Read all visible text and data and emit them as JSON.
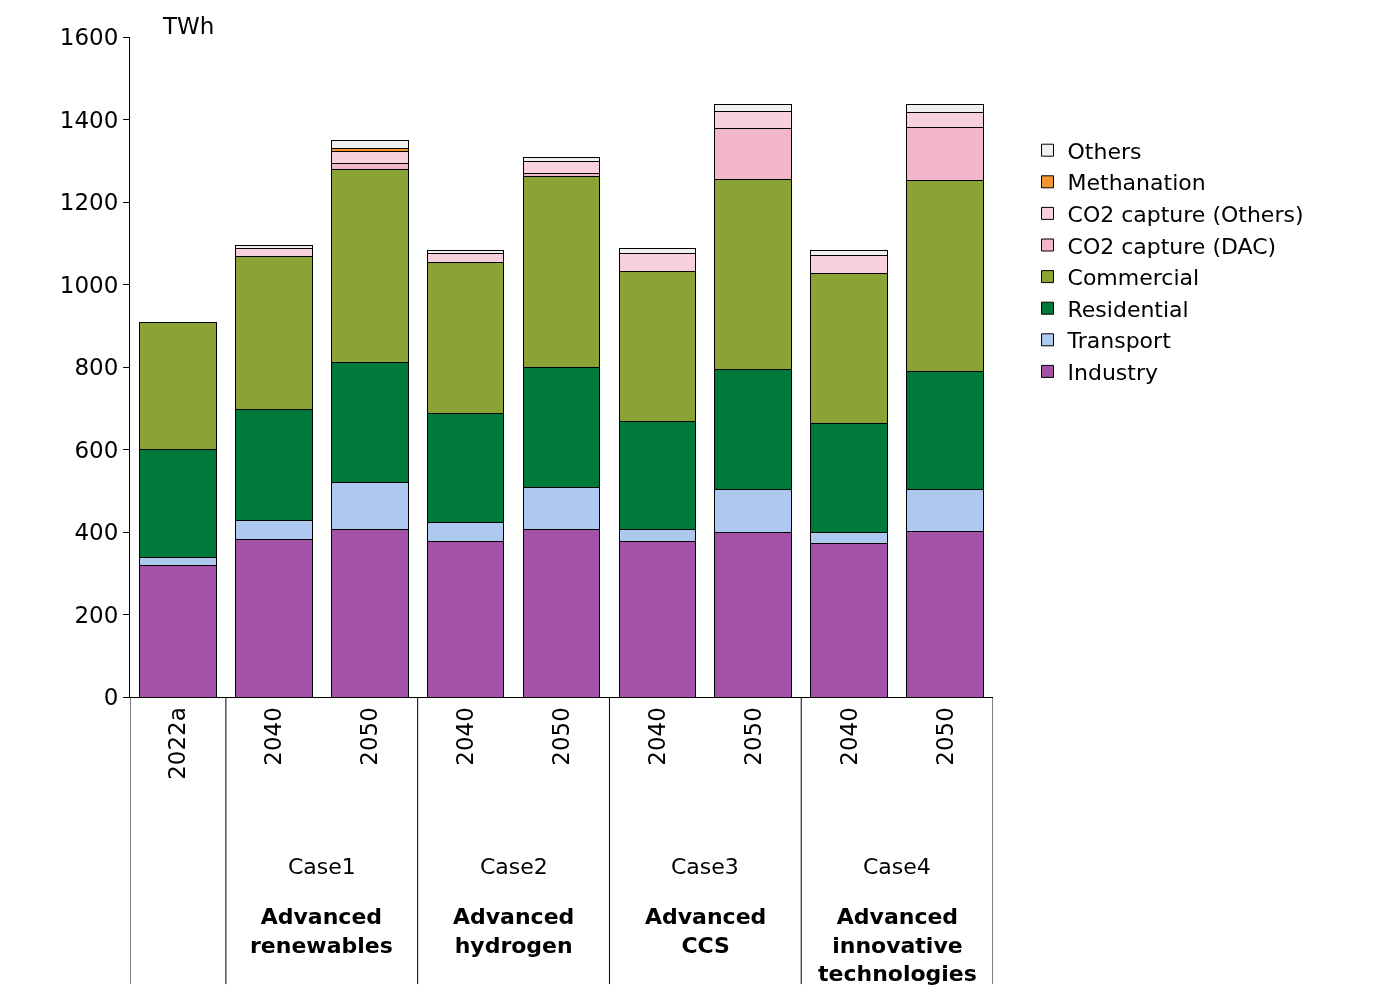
{
  "chart_data": {
    "type": "bar",
    "stacked": true,
    "ylabel": "TWh",
    "categories": [
      "2022a",
      "2040",
      "2050",
      "2040",
      "2050",
      "2040",
      "2050",
      "2040",
      "2050"
    ],
    "ylim": [
      0,
      1600
    ],
    "yticks": [
      0,
      200,
      400,
      600,
      800,
      1000,
      1200,
      1400,
      1600
    ],
    "grid": false,
    "legend": "right",
    "annotations": [
      "Case1",
      "Advanced renewables",
      "Case2",
      "Advanced hydrogen",
      "Case3",
      "Advanced CCS",
      "Case4",
      "Advanced innovative technologies"
    ],
    "series": [
      {
        "name": "Industry",
        "color": "#a352a8",
        "values": [
          320,
          383,
          407,
          378,
          405,
          376,
          400,
          371,
          402
        ]
      },
      {
        "name": "Transport",
        "color": "#adc9ef",
        "values": [
          17,
          46,
          114,
          44,
          104,
          29,
          104,
          29,
          100
        ]
      },
      {
        "name": "Residential",
        "color": "#007a3a",
        "values": [
          262,
          267,
          289,
          266,
          289,
          264,
          289,
          264,
          288
        ]
      },
      {
        "name": "Commercial",
        "color": "#8ba334",
        "values": [
          308,
          371,
          468,
          366,
          464,
          363,
          462,
          363,
          461
        ]
      },
      {
        "name": "CO2 capture (DAC)",
        "color": "#f1b6c8",
        "values": [
          null,
          null,
          16,
          null,
          6,
          null,
          124,
          null,
          129
        ]
      },
      {
        "name": "CO2 capture (Others)",
        "color": "#f7d0dc",
        "values": [
          null,
          21,
          28,
          21,
          30,
          42,
          40,
          43,
          37
        ]
      },
      {
        "name": "Methanation",
        "color": "#f39530",
        "values": [
          null,
          null,
          8,
          null,
          null,
          null,
          null,
          null,
          null
        ]
      },
      {
        "name": "Others",
        "color": "#efefef",
        "values": [
          null,
          7,
          20,
          7,
          10,
          13,
          17,
          13,
          19
        ]
      }
    ]
  }
}
